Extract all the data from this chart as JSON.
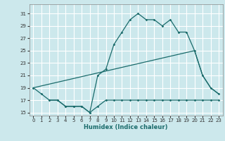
{
  "bg_color": "#cce8ec",
  "grid_color": "#ffffff",
  "line_color": "#1a6b6b",
  "xlabel": "Humidex (Indice chaleur)",
  "xlim": [
    -0.5,
    23.5
  ],
  "ylim": [
    14.5,
    32.5
  ],
  "xticks": [
    0,
    1,
    2,
    3,
    4,
    5,
    6,
    7,
    8,
    9,
    10,
    11,
    12,
    13,
    14,
    15,
    16,
    17,
    18,
    19,
    20,
    21,
    22,
    23
  ],
  "yticks": [
    15,
    17,
    19,
    21,
    23,
    25,
    27,
    29,
    31
  ],
  "line1_x": [
    0,
    1,
    2,
    3,
    4,
    5,
    6,
    7,
    8,
    9,
    10,
    11,
    12,
    13,
    14,
    15,
    16,
    17,
    18,
    19,
    20,
    21,
    22,
    23
  ],
  "line1_y": [
    19,
    18,
    17,
    17,
    16,
    16,
    16,
    15,
    21,
    22,
    26,
    28,
    30,
    31,
    30,
    30,
    29,
    30,
    28,
    28,
    25,
    21,
    19,
    18
  ],
  "line2_x": [
    2,
    3,
    4,
    5,
    6,
    7,
    8,
    9,
    10,
    11,
    12,
    13,
    14,
    15,
    16,
    17,
    18,
    19,
    20,
    21,
    22,
    23
  ],
  "line2_y": [
    17,
    17,
    16,
    16,
    16,
    15,
    16,
    17,
    17,
    17,
    17,
    17,
    17,
    17,
    17,
    17,
    17,
    17,
    17,
    17,
    17,
    17
  ],
  "line3_x": [
    0,
    20,
    21,
    22,
    23
  ],
  "line3_y": [
    19,
    25,
    21,
    19,
    18
  ]
}
